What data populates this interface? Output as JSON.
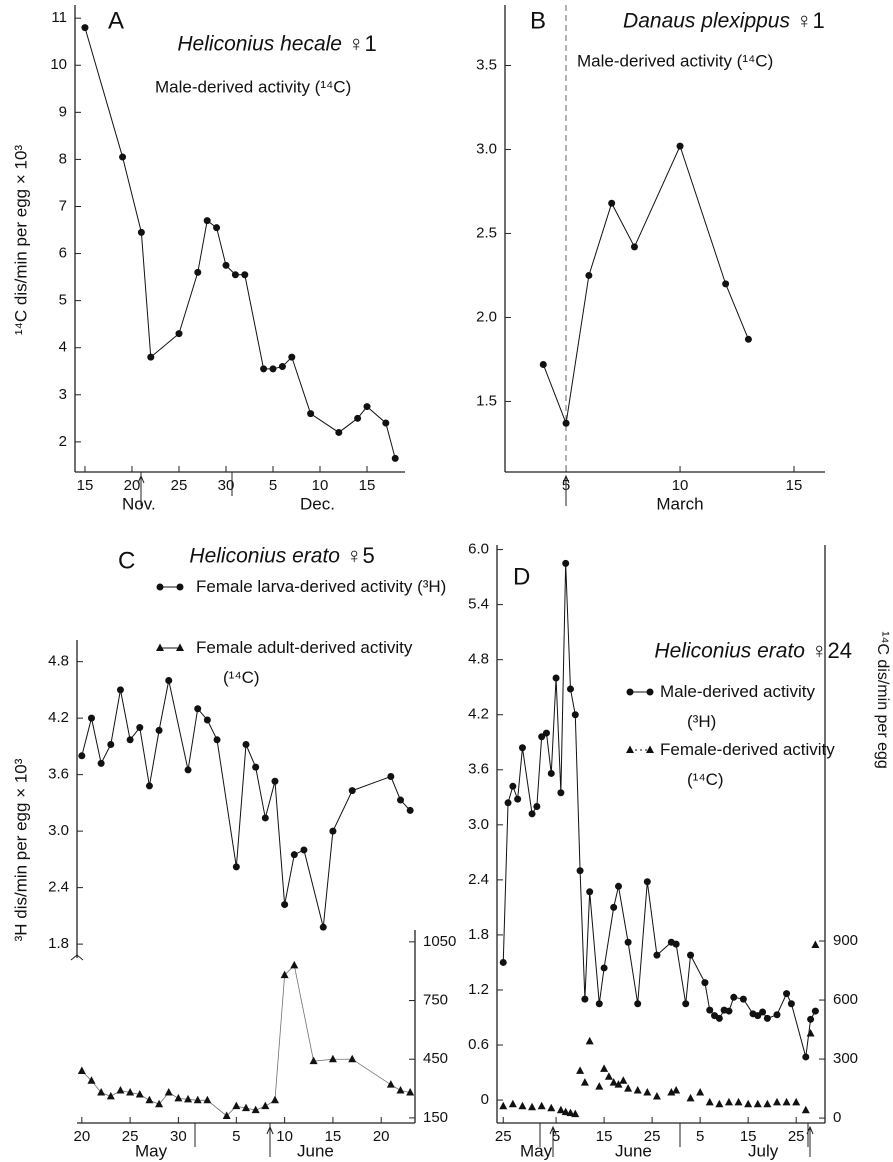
{
  "chart_data": [
    {
      "type": "line",
      "panel": "A",
      "title": "Heliconius hecale",
      "title_mark": "♀1",
      "subtitle": "Male-derived activity (¹⁴C)",
      "ylabel": "¹⁴C dis/min per egg × 10³",
      "month_labels": [
        "Nov.",
        "Dec."
      ],
      "xlim": [
        13.94,
        49.04
      ],
      "xticks": [
        15,
        20,
        25,
        30,
        {
          "value": 35,
          "label": "5"
        },
        {
          "value": 40,
          "label": "10"
        },
        {
          "value": 45,
          "label": "15"
        }
      ],
      "ylim": [
        1.36,
        11.28
      ],
      "yticks": [
        2,
        3,
        4,
        5,
        6,
        7,
        8,
        9,
        10,
        11
      ],
      "series": [
        {
          "color": "#111111",
          "marker": "circle",
          "line": true,
          "x": [
            15,
            19,
            21,
            22,
            25,
            27,
            28,
            29,
            30,
            31,
            32,
            34,
            35,
            36,
            37,
            39,
            42,
            44,
            45,
            47,
            48
          ],
          "values": [
            10.8,
            8.05,
            6.45,
            3.8,
            4.3,
            5.6,
            6.7,
            6.55,
            5.75,
            5.55,
            5.55,
            3.55,
            3.55,
            3.6,
            3.8,
            2.6,
            2.2,
            2.5,
            2.75,
            2.4,
            1.65
          ]
        }
      ]
    },
    {
      "type": "line",
      "panel": "B",
      "title": "Danaus plexippus",
      "title_mark": "♀1",
      "subtitle": "Male-derived activity (¹⁴C)",
      "xlabel": "March",
      "xlim": [
        2.32,
        16.36
      ],
      "xticks": [
        5,
        10,
        15
      ],
      "ylim": [
        1.08,
        3.86
      ],
      "yticks": [
        1.5,
        {
          "value": 2,
          "label": "2.0"
        },
        2.5,
        {
          "value": 3,
          "label": "3.0"
        },
        3.5
      ],
      "series": [
        {
          "color": "#111111",
          "marker": "circle",
          "line": true,
          "x": [
            4,
            5,
            6,
            7,
            8,
            10,
            12,
            13
          ],
          "values": [
            1.72,
            1.37,
            2.25,
            2.68,
            2.42,
            3.02,
            2.2,
            1.87
          ]
        }
      ]
    },
    {
      "type": "line",
      "panel": "C",
      "title": "Heliconius erato",
      "title_mark": "♀5",
      "ylabel": "³H dis/min per egg × 10³",
      "month_labels": [
        "May",
        "June"
      ],
      "xlim": [
        19.5,
        54.5
      ],
      "xticks": [
        20,
        25,
        30,
        {
          "value": 36,
          "label": "5"
        },
        {
          "value": 41,
          "label": "10"
        },
        {
          "value": 46,
          "label": "15"
        },
        {
          "value": 51,
          "label": "20"
        }
      ],
      "ylim": [
        -0.1,
        5.03
      ],
      "yticks": [
        1.8,
        2.4,
        {
          "value": 3,
          "label": "3.0"
        },
        3.6,
        4.2,
        4.8
      ],
      "y2lim": [
        124,
        2593
      ],
      "y2ticks": [
        150,
        450,
        750,
        1050
      ],
      "series": [
        {
          "name": "Female larva-derived activity (³H)",
          "color": "#111111",
          "marker": "circle",
          "line": true,
          "x": [
            20,
            21,
            22,
            23,
            24,
            25,
            26,
            27,
            28,
            29,
            31,
            32,
            33,
            34,
            36,
            37,
            38,
            39,
            40,
            41,
            42,
            43,
            45,
            46,
            48,
            52,
            53,
            54
          ],
          "values": [
            3.8,
            4.2,
            3.72,
            3.92,
            4.5,
            3.97,
            4.1,
            3.48,
            4.07,
            4.6,
            3.65,
            4.3,
            4.18,
            3.97,
            2.62,
            3.92,
            3.68,
            3.14,
            3.53,
            2.22,
            2.75,
            2.8,
            1.98,
            3.0,
            3.43,
            3.58,
            3.33,
            3.22
          ]
        },
        {
          "name": "Female adult-derived activity (¹⁴C)",
          "color": "#111111",
          "marker": "triangle",
          "line": true,
          "axis": "y2",
          "x": [
            20,
            21,
            22,
            23,
            24,
            25,
            26,
            27,
            28,
            29,
            30,
            31,
            32,
            33,
            35,
            36,
            37,
            38,
            39,
            40,
            41,
            42,
            44,
            46,
            48,
            52,
            53,
            54
          ],
          "values": [
            390,
            340,
            280,
            260,
            290,
            280,
            270,
            240,
            220,
            280,
            250,
            245,
            240,
            240,
            160,
            210,
            200,
            190,
            210,
            240,
            880,
            930,
            440,
            450,
            450,
            320,
            290,
            280
          ]
        }
      ]
    },
    {
      "type": "line",
      "panel": "D",
      "title": "Heliconius erato",
      "title_mark": "♀24",
      "y2label": "¹⁴C dis/min per egg",
      "month_labels": [
        "May",
        "June",
        "July"
      ],
      "xlim": [
        23.7,
        92
      ],
      "xticks": [
        25,
        {
          "value": 36,
          "label": "5"
        },
        {
          "value": 46,
          "label": "15"
        },
        {
          "value": 56,
          "label": "25"
        },
        {
          "value": 66,
          "label": "5"
        },
        {
          "value": 76,
          "label": "15"
        },
        {
          "value": 86,
          "label": "25"
        }
      ],
      "ylim": [
        -0.25,
        6.05
      ],
      "yticks": [
        0,
        0.6,
        1.2,
        1.8,
        2.4,
        {
          "value": 3,
          "label": "3.0"
        },
        3.6,
        4.2,
        4.8,
        5.4,
        {
          "value": 6,
          "label": "6.0"
        }
      ],
      "y2lim": [
        -25,
        2913
      ],
      "y2ticks": [
        0,
        300,
        600,
        900
      ],
      "series": [
        {
          "name": "Male-derived activity (³H)",
          "color": "#111111",
          "marker": "circle",
          "line": true,
          "x": [
            25,
            26,
            27,
            28,
            29,
            31,
            32,
            33,
            34,
            35,
            36,
            37,
            38,
            39,
            40,
            41,
            42,
            43,
            45,
            46,
            48,
            49,
            51,
            53,
            55,
            57,
            60,
            61,
            63,
            64,
            67,
            68,
            69,
            70,
            71,
            72,
            73,
            75,
            77,
            78,
            79,
            80,
            82,
            84,
            85,
            88,
            89,
            90
          ],
          "values": [
            1.5,
            3.24,
            3.42,
            3.28,
            3.84,
            3.12,
            3.2,
            3.96,
            4.0,
            3.56,
            4.6,
            3.35,
            5.85,
            4.48,
            4.2,
            2.5,
            1.1,
            2.27,
            1.05,
            1.44,
            2.1,
            2.33,
            1.72,
            1.05,
            2.38,
            1.58,
            1.72,
            1.7,
            1.05,
            1.58,
            1.28,
            0.98,
            0.92,
            0.89,
            0.98,
            0.97,
            1.12,
            1.1,
            0.94,
            0.92,
            0.96,
            0.89,
            0.93,
            1.16,
            1.05,
            0.47,
            0.88,
            0.97
          ]
        },
        {
          "name": "Female-derived activity (¹⁴C)",
          "color": "#111111",
          "marker": "triangle",
          "line": false,
          "axis": "y2",
          "x": [
            25,
            27,
            29,
            31,
            33,
            35,
            37,
            38,
            39,
            40,
            41,
            42,
            43,
            45,
            46,
            47,
            48,
            49,
            50,
            51,
            53,
            55,
            57,
            60,
            61,
            64,
            66,
            68,
            70,
            72,
            74,
            76,
            78,
            80,
            82,
            84,
            86,
            88,
            89,
            90
          ],
          "values": [
            60,
            70,
            60,
            55,
            60,
            50,
            40,
            30,
            25,
            20,
            240,
            180,
            390,
            160,
            250,
            210,
            180,
            170,
            190,
            150,
            140,
            130,
            110,
            130,
            140,
            100,
            130,
            80,
            70,
            80,
            80,
            70,
            70,
            70,
            80,
            80,
            80,
            40,
            430,
            880
          ]
        }
      ]
    }
  ]
}
